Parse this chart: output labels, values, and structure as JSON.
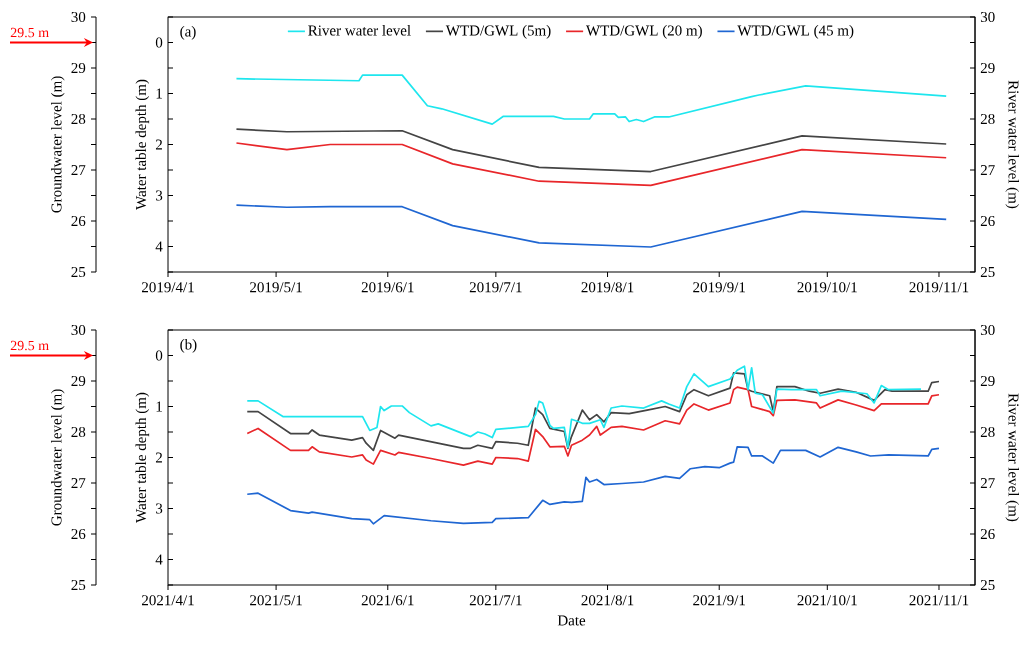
{
  "chart_data": [
    {
      "type": "line",
      "title": "(a)",
      "ylabel": "Water table depth (m)",
      "y2label": "River water level (m)",
      "y3label": "Groundwater level (m)",
      "legend": "top",
      "xlim": [
        "2019-04-01",
        "2019-11-11"
      ],
      "xticks": [
        {
          "value": "2019-04-01",
          "label": "2019/4/1"
        },
        {
          "value": "2019-05-01",
          "label": "2019/5/1"
        },
        {
          "value": "2019-06-01",
          "label": "2019/6/1"
        },
        {
          "value": "2019-07-01",
          "label": "2019/7/1"
        },
        {
          "value": "2019-08-01",
          "label": "2019/8/1"
        },
        {
          "value": "2019-09-01",
          "label": "2019/9/1"
        },
        {
          "value": "2019-10-01",
          "label": "2019/10/1"
        },
        {
          "value": "2019-11-01",
          "label": "2019/11/1"
        }
      ],
      "ylim": [
        4.5,
        -0.5
      ],
      "yticks": [
        {
          "value": -0.5,
          "label": null
        },
        0,
        {
          "value": 0.5,
          "label": null
        },
        1,
        {
          "value": 1.5,
          "label": null
        },
        2,
        {
          "value": 2.5,
          "label": null
        },
        3,
        {
          "value": 3.5,
          "label": null
        },
        4,
        {
          "value": 4.5,
          "label": null
        }
      ],
      "y2lim": [
        25,
        30
      ],
      "y2ticks": [
        25,
        {
          "value": 25.5,
          "label": null
        },
        26,
        {
          "value": 26.5,
          "label": null
        },
        27,
        {
          "value": 27.5,
          "label": null
        },
        28,
        {
          "value": 28.5,
          "label": null
        },
        29,
        {
          "value": 29.5,
          "label": null
        },
        30
      ],
      "y3lim": [
        25,
        30
      ],
      "y3ticks": [
        25,
        {
          "value": 25.5,
          "label": null
        },
        26,
        {
          "value": 26.5,
          "label": null
        },
        27,
        {
          "value": 27.5,
          "label": null
        },
        28,
        {
          "value": 28.5,
          "label": null
        },
        29,
        {
          "value": 29.5,
          "label": null
        },
        30
      ],
      "annotations": [
        "29.5 m"
      ],
      "series": [
        {
          "name": "River water level",
          "color": "#1ee6ee",
          "axis": "y2",
          "x": [
            "2019-04-20",
            "2019-05-24",
            "2019-05-25",
            "2019-06-05",
            "2019-06-12",
            "2019-06-16",
            "2019-06-30",
            "2019-07-03",
            "2019-07-17",
            "2019-07-20",
            "2019-07-27",
            "2019-07-28",
            "2019-08-03",
            "2019-08-04",
            "2019-08-06",
            "2019-08-07",
            "2019-08-09",
            "2019-08-11",
            "2019-08-14",
            "2019-08-18",
            "2019-09-10",
            "2019-09-12",
            "2019-09-25",
            "2019-11-03"
          ],
          "values": [
            28.79,
            28.75,
            28.86,
            28.86,
            28.26,
            28.2,
            27.9,
            28.05,
            28.05,
            28.0,
            28.0,
            28.1,
            28.1,
            28.03,
            28.04,
            27.95,
            27.99,
            27.95,
            28.04,
            28.04,
            28.44,
            28.47,
            28.65,
            28.45
          ]
        },
        {
          "name": "WTD/GWL (5m)",
          "color": "#444444",
          "x": [
            "2019-04-20",
            "2019-05-04",
            "2019-06-05",
            "2019-06-19",
            "2019-07-13",
            "2019-08-13",
            "2019-09-24",
            "2019-11-03"
          ],
          "values": [
            1.7,
            1.75,
            1.73,
            2.1,
            2.45,
            2.53,
            1.83,
            1.99
          ]
        },
        {
          "name": "WTD/GWL (20 m)",
          "color": "#e8262a",
          "x": [
            "2019-04-20",
            "2019-05-04",
            "2019-05-16",
            "2019-06-05",
            "2019-06-19",
            "2019-07-13",
            "2019-08-13",
            "2019-09-24",
            "2019-11-03"
          ],
          "values": [
            1.97,
            2.1,
            2.0,
            2.0,
            2.38,
            2.72,
            2.8,
            2.1,
            2.26
          ]
        },
        {
          "name": "WTD/GWL (45 m)",
          "color": "#1f66d2",
          "x": [
            "2019-04-20",
            "2019-05-04",
            "2019-05-16",
            "2019-06-05",
            "2019-06-19",
            "2019-07-13",
            "2019-08-13",
            "2019-09-24",
            "2019-11-03"
          ],
          "values": [
            3.19,
            3.23,
            3.22,
            3.22,
            3.59,
            3.93,
            4.01,
            3.31,
            3.47
          ]
        }
      ]
    },
    {
      "type": "line",
      "title": "(b)",
      "xlabel": "Date",
      "ylabel": "Water table depth (m)",
      "y2label": "River water level (m)",
      "y3label": "Groundwater level (m)",
      "xlim": [
        "2021-04-01",
        "2021-11-11"
      ],
      "xticks": [
        {
          "value": "2021-04-01",
          "label": "2021/4/1"
        },
        {
          "value": "2021-05-01",
          "label": "2021/5/1"
        },
        {
          "value": "2021-06-01",
          "label": "2021/6/1"
        },
        {
          "value": "2021-07-01",
          "label": "2021/7/1"
        },
        {
          "value": "2021-08-01",
          "label": "2021/8/1"
        },
        {
          "value": "2021-09-01",
          "label": "2021/9/1"
        },
        {
          "value": "2021-10-01",
          "label": "2021/10/1"
        },
        {
          "value": "2021-11-01",
          "label": "2021/11/1"
        }
      ],
      "ylim": [
        4.5,
        -0.5
      ],
      "yticks": [
        {
          "value": -0.5,
          "label": null
        },
        0,
        {
          "value": 0.5,
          "label": null
        },
        1,
        {
          "value": 1.5,
          "label": null
        },
        2,
        {
          "value": 2.5,
          "label": null
        },
        3,
        {
          "value": 3.5,
          "label": null
        },
        4,
        {
          "value": 4.5,
          "label": null
        }
      ],
      "y2lim": [
        25,
        30
      ],
      "y2ticks": [
        25,
        {
          "value": 25.5,
          "label": null
        },
        26,
        {
          "value": 26.5,
          "label": null
        },
        27,
        {
          "value": 27.5,
          "label": null
        },
        28,
        {
          "value": 28.5,
          "label": null
        },
        29,
        {
          "value": 29.5,
          "label": null
        },
        30
      ],
      "y3lim": [
        25,
        30
      ],
      "y3ticks": [
        25,
        {
          "value": 25.5,
          "label": null
        },
        26,
        {
          "value": 26.5,
          "label": null
        },
        27,
        {
          "value": 27.5,
          "label": null
        },
        28,
        {
          "value": 28.5,
          "label": null
        },
        29,
        {
          "value": 29.5,
          "label": null
        },
        30
      ],
      "annotations": [
        "29.5 m"
      ],
      "series": [
        {
          "color": "#1ee6ee",
          "axis": "y2",
          "x": [
            "2021-04-23",
            "2021-04-26",
            "2021-05-03",
            "2021-05-25",
            "2021-05-27",
            "2021-05-29",
            "2021-05-30",
            "2021-05-31",
            "2021-06-02",
            "2021-06-05",
            "2021-06-07",
            "2021-06-13",
            "2021-06-15",
            "2021-06-24",
            "2021-06-26",
            "2021-06-28",
            "2021-06-30",
            "2021-07-01",
            "2021-07-10",
            "2021-07-12",
            "2021-07-13",
            "2021-07-14",
            "2021-07-16",
            "2021-07-17",
            "2021-07-20",
            "2021-07-21",
            "2021-07-22",
            "2021-07-24",
            "2021-07-25",
            "2021-07-27",
            "2021-07-30",
            "2021-07-31",
            "2021-08-02",
            "2021-08-05",
            "2021-08-11",
            "2021-08-16",
            "2021-08-18",
            "2021-08-21",
            "2021-08-23",
            "2021-08-25",
            "2021-08-29",
            "2021-09-04",
            "2021-09-06",
            "2021-09-08",
            "2021-09-09",
            "2021-09-10",
            "2021-09-11",
            "2021-09-13",
            "2021-09-16",
            "2021-09-17",
            "2021-09-21",
            "2021-09-28",
            "2021-09-29",
            "2021-10-05",
            "2021-10-12",
            "2021-10-14",
            "2021-10-16",
            "2021-10-18",
            "2021-10-27"
          ],
          "values": [
            28.61,
            28.61,
            28.3,
            28.3,
            28.03,
            28.09,
            28.5,
            28.42,
            28.51,
            28.51,
            28.38,
            28.12,
            28.16,
            27.91,
            28.0,
            27.96,
            27.89,
            28.05,
            28.11,
            28.34,
            28.6,
            28.57,
            28.13,
            28.07,
            28.09,
            27.7,
            28.25,
            28.2,
            28.17,
            28.17,
            28.24,
            28.09,
            28.47,
            28.51,
            28.47,
            28.61,
            28.55,
            28.47,
            28.89,
            29.14,
            28.89,
            29.04,
            29.21,
            29.29,
            28.83,
            29.26,
            28.76,
            28.73,
            28.37,
            28.84,
            28.83,
            28.83,
            28.71,
            28.8,
            28.75,
            28.57,
            28.91,
            28.83,
            28.84
          ]
        },
        {
          "color": "#444444",
          "x": [
            "2021-04-23",
            "2021-04-26",
            "2021-05-05",
            "2021-05-10",
            "2021-05-11",
            "2021-05-13",
            "2021-05-22",
            "2021-05-25",
            "2021-05-26",
            "2021-05-28",
            "2021-05-30",
            "2021-06-03",
            "2021-06-04",
            "2021-06-13",
            "2021-06-22",
            "2021-06-24",
            "2021-06-26",
            "2021-06-30",
            "2021-07-01",
            "2021-07-07",
            "2021-07-10",
            "2021-07-12",
            "2021-07-14",
            "2021-07-16",
            "2021-07-20",
            "2021-07-21",
            "2021-07-22",
            "2021-07-25",
            "2021-07-27",
            "2021-07-29",
            "2021-07-31",
            "2021-08-02",
            "2021-08-07",
            "2021-08-12",
            "2021-08-17",
            "2021-08-21",
            "2021-08-23",
            "2021-08-25",
            "2021-08-29",
            "2021-09-04",
            "2021-09-05",
            "2021-09-08",
            "2021-09-09",
            "2021-09-10",
            "2021-09-15",
            "2021-09-16",
            "2021-09-17",
            "2021-09-22",
            "2021-09-26",
            "2021-09-29",
            "2021-10-04",
            "2021-10-09",
            "2021-10-14",
            "2021-10-17",
            "2021-10-19",
            "2021-10-29",
            "2021-10-30",
            "2021-11-01"
          ],
          "values": [
            1.1,
            1.1,
            1.53,
            1.53,
            1.46,
            1.56,
            1.66,
            1.61,
            1.72,
            1.86,
            1.47,
            1.62,
            1.56,
            1.69,
            1.82,
            1.82,
            1.76,
            1.82,
            1.69,
            1.72,
            1.76,
            1.03,
            1.16,
            1.43,
            1.49,
            1.82,
            1.59,
            1.07,
            1.26,
            1.16,
            1.3,
            1.12,
            1.14,
            1.07,
            1.0,
            1.1,
            0.77,
            0.67,
            0.79,
            0.64,
            0.34,
            0.36,
            0.67,
            0.7,
            0.79,
            1.1,
            0.61,
            0.61,
            0.7,
            0.74,
            0.66,
            0.72,
            0.88,
            0.67,
            0.7,
            0.7,
            0.53,
            0.51
          ]
        },
        {
          "color": "#e8262a",
          "x": [
            "2021-04-23",
            "2021-04-26",
            "2021-05-05",
            "2021-05-10",
            "2021-05-11",
            "2021-05-13",
            "2021-05-22",
            "2021-05-25",
            "2021-05-26",
            "2021-05-28",
            "2021-05-30",
            "2021-06-03",
            "2021-06-04",
            "2021-06-13",
            "2021-06-22",
            "2021-06-26",
            "2021-06-30",
            "2021-07-01",
            "2021-07-07",
            "2021-07-10",
            "2021-07-12",
            "2021-07-14",
            "2021-07-16",
            "2021-07-20",
            "2021-07-21",
            "2021-07-22",
            "2021-07-25",
            "2021-07-27",
            "2021-07-29",
            "2021-07-30",
            "2021-08-02",
            "2021-08-05",
            "2021-08-11",
            "2021-08-17",
            "2021-08-21",
            "2021-08-23",
            "2021-08-25",
            "2021-08-29",
            "2021-09-04",
            "2021-09-05",
            "2021-09-06",
            "2021-09-09",
            "2021-09-10",
            "2021-09-15",
            "2021-09-16",
            "2021-09-17",
            "2021-09-22",
            "2021-09-28",
            "2021-09-29",
            "2021-10-04",
            "2021-10-09",
            "2021-10-14",
            "2021-10-16",
            "2021-10-19",
            "2021-10-29",
            "2021-10-30",
            "2021-11-01"
          ],
          "values": [
            1.53,
            1.43,
            1.86,
            1.86,
            1.79,
            1.89,
            1.99,
            1.95,
            2.05,
            2.13,
            1.86,
            1.95,
            1.9,
            2.02,
            2.15,
            2.07,
            2.13,
            2.0,
            2.02,
            2.07,
            1.45,
            1.59,
            1.79,
            1.78,
            1.97,
            1.76,
            1.66,
            1.56,
            1.39,
            1.56,
            1.41,
            1.39,
            1.46,
            1.28,
            1.34,
            1.07,
            0.95,
            1.07,
            0.93,
            0.67,
            0.62,
            0.67,
            1.0,
            1.1,
            1.18,
            0.88,
            0.87,
            0.93,
            1.03,
            0.87,
            0.97,
            1.08,
            0.95,
            0.95,
            0.95,
            0.79,
            0.77
          ]
        },
        {
          "color": "#1f66d2",
          "x": [
            "2021-04-23",
            "2021-04-26",
            "2021-05-05",
            "2021-05-10",
            "2021-05-11",
            "2021-05-22",
            "2021-05-27",
            "2021-05-28",
            "2021-05-31",
            "2021-06-13",
            "2021-06-22",
            "2021-06-30",
            "2021-07-01",
            "2021-07-10",
            "2021-07-14",
            "2021-07-16",
            "2021-07-20",
            "2021-07-22",
            "2021-07-25",
            "2021-07-26",
            "2021-07-27",
            "2021-07-29",
            "2021-07-31",
            "2021-08-05",
            "2021-08-11",
            "2021-08-17",
            "2021-08-21",
            "2021-08-24",
            "2021-08-28",
            "2021-09-01",
            "2021-09-04",
            "2021-09-05",
            "2021-09-06",
            "2021-09-09",
            "2021-09-10",
            "2021-09-13",
            "2021-09-16",
            "2021-09-18",
            "2021-09-22",
            "2021-09-25",
            "2021-09-29",
            "2021-10-04",
            "2021-10-09",
            "2021-10-13",
            "2021-10-18",
            "2021-10-29",
            "2021-10-30",
            "2021-11-01"
          ],
          "values": [
            2.72,
            2.7,
            3.04,
            3.09,
            3.07,
            3.2,
            3.22,
            3.3,
            3.14,
            3.24,
            3.29,
            3.27,
            3.2,
            3.18,
            2.84,
            2.92,
            2.87,
            2.88,
            2.86,
            2.39,
            2.48,
            2.43,
            2.53,
            2.51,
            2.48,
            2.37,
            2.41,
            2.22,
            2.18,
            2.2,
            2.11,
            2.09,
            1.79,
            1.8,
            1.97,
            1.97,
            2.11,
            1.86,
            1.86,
            1.86,
            1.99,
            1.8,
            1.89,
            1.97,
            1.95,
            1.97,
            1.84,
            1.82
          ]
        }
      ]
    }
  ]
}
